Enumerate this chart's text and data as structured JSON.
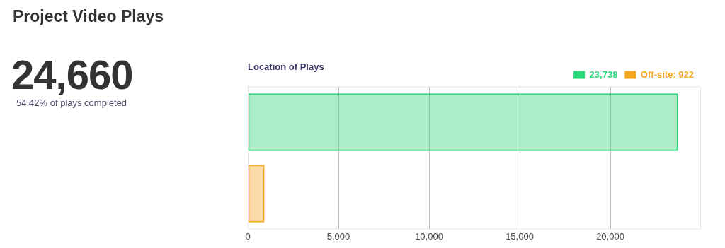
{
  "chart_data": [
    {
      "type": "other",
      "title": "Project Video Plays",
      "annotations": [
        "24,660",
        "54.42% of plays completed"
      ]
    },
    {
      "type": "bar",
      "title": "Location of Plays",
      "orientation": "horizontal",
      "categories": [
        null,
        null
      ],
      "series": [
        {
          "name": "23,738",
          "color": "#2bd87a",
          "values": [
            23738,
            null
          ]
        },
        {
          "name": "Off-site: 922",
          "color": "#f5a623",
          "values": [
            null,
            922
          ]
        }
      ],
      "xlim": [
        0,
        25000
      ],
      "xticks": [
        {
          "value": 0,
          "label": "0"
        },
        {
          "value": 5000,
          "label": "5,000"
        },
        {
          "value": 10000,
          "label": "10,000"
        },
        {
          "value": 15000,
          "label": "15,000"
        },
        {
          "value": 20000,
          "label": "20,000"
        }
      ],
      "grid": "x",
      "legend": "top right",
      "tick_labels": "x"
    }
  ]
}
